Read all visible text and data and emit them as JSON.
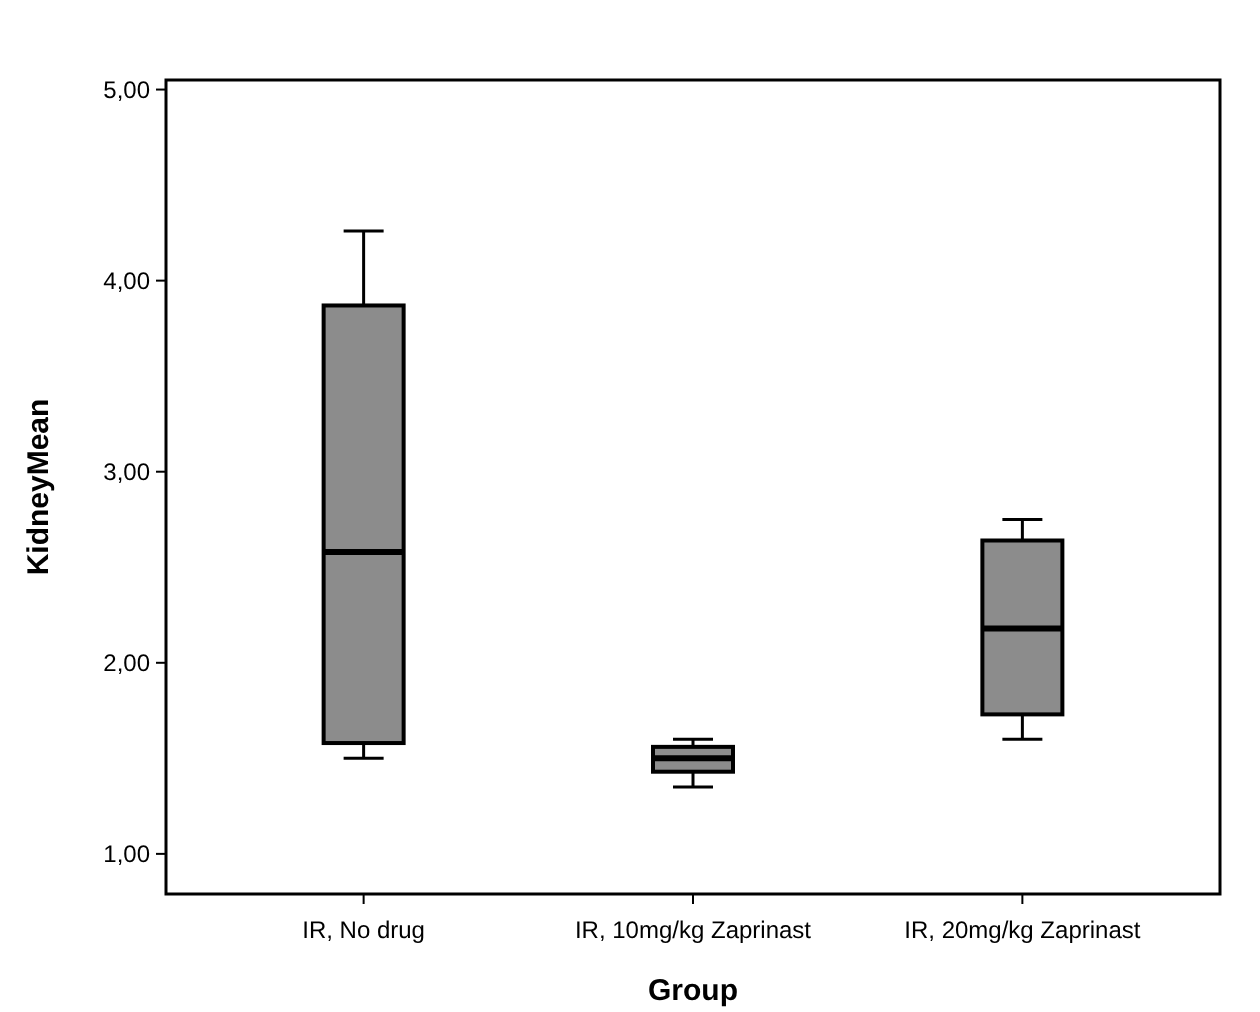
{
  "chart_data": {
    "type": "box",
    "xlabel": "Group",
    "ylabel": "KidneyMean",
    "categories": [
      "IR, No drug",
      "IR, 10mg/kg Zaprinast",
      "IR, 20mg/kg Zaprinast"
    ],
    "color": "#8c8c8c",
    "boxes": [
      {
        "low": 1.5,
        "q1": 1.58,
        "median": 2.58,
        "q3": 3.87,
        "high": 4.26
      },
      {
        "low": 1.35,
        "q1": 1.43,
        "median": 1.5,
        "q3": 1.56,
        "high": 1.6
      },
      {
        "low": 1.6,
        "q1": 1.73,
        "median": 2.18,
        "q3": 2.64,
        "high": 2.75
      }
    ],
    "ylim": [
      0.79,
      5.05
    ],
    "yticks": [
      {
        "value": 1,
        "label": "1,00"
      },
      {
        "value": 2,
        "label": "2,00"
      },
      {
        "value": 3,
        "label": "3,00"
      },
      {
        "value": 4,
        "label": "4,00"
      },
      {
        "value": 5,
        "label": "5,00"
      }
    ],
    "grid": false
  }
}
